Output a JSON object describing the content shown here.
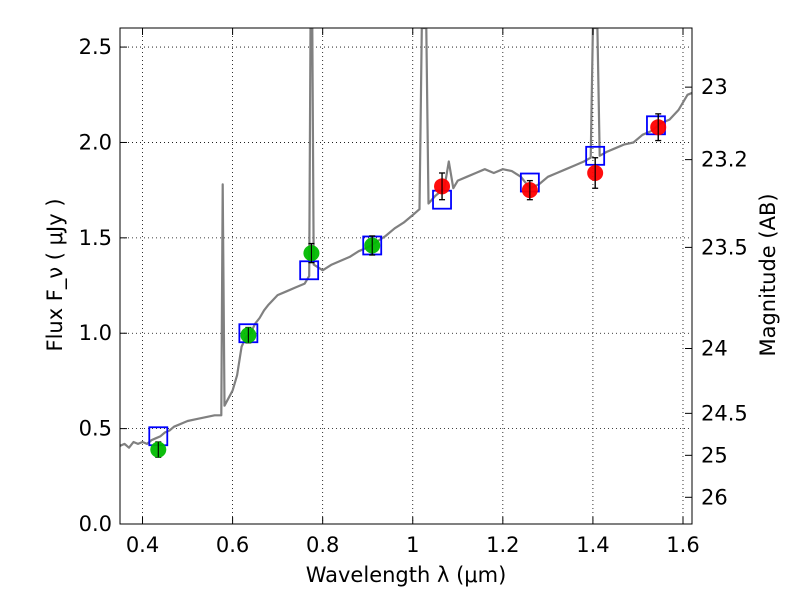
{
  "chart_data": {
    "type": "scatter",
    "title": "",
    "xlabel": "Wavelength λ (μm)",
    "ylabel": "Flux F_ν ( μJy )",
    "y2label": "Magnitude (AB)",
    "xlim": [
      0.35,
      1.62
    ],
    "ylim": [
      0.0,
      2.6
    ],
    "grid": true,
    "x_ticks": [
      "0.4",
      "0.6",
      "0.8",
      "1",
      "1.2",
      "1.4",
      "1.6"
    ],
    "y_ticks": [
      "0.0",
      "0.5",
      "1.0",
      "1.5",
      "2.0",
      "2.5"
    ],
    "y2_ticks": [
      {
        "label": "23",
        "flux": 2.29
      },
      {
        "label": "23.2",
        "flux": 1.91
      },
      {
        "label": "23.5",
        "flux": 1.45
      },
      {
        "label": "24",
        "flux": 0.92
      },
      {
        "label": "24.5",
        "flux": 0.58
      },
      {
        "label": "25",
        "flux": 0.36
      },
      {
        "label": "26",
        "flux": 0.14
      }
    ],
    "series": [
      {
        "kind": "spectrum",
        "color": "#808080",
        "points": [
          [
            0.35,
            0.41
          ],
          [
            0.36,
            0.42
          ],
          [
            0.37,
            0.4
          ],
          [
            0.38,
            0.43
          ],
          [
            0.39,
            0.42
          ],
          [
            0.4,
            0.43
          ],
          [
            0.41,
            0.42
          ],
          [
            0.42,
            0.44
          ],
          [
            0.43,
            0.45
          ],
          [
            0.44,
            0.46
          ],
          [
            0.45,
            0.48
          ],
          [
            0.46,
            0.49
          ],
          [
            0.47,
            0.51
          ],
          [
            0.48,
            0.52
          ],
          [
            0.49,
            0.53
          ],
          [
            0.5,
            0.54
          ],
          [
            0.52,
            0.55
          ],
          [
            0.54,
            0.56
          ],
          [
            0.56,
            0.57
          ],
          [
            0.575,
            0.57
          ],
          [
            0.578,
            1.78
          ],
          [
            0.582,
            0.62
          ],
          [
            0.6,
            0.7
          ],
          [
            0.61,
            0.78
          ],
          [
            0.62,
            0.93
          ],
          [
            0.63,
            0.98
          ],
          [
            0.64,
            1.0
          ],
          [
            0.65,
            1.05
          ],
          [
            0.66,
            1.08
          ],
          [
            0.67,
            1.12
          ],
          [
            0.68,
            1.15
          ],
          [
            0.7,
            1.2
          ],
          [
            0.72,
            1.22
          ],
          [
            0.74,
            1.24
          ],
          [
            0.76,
            1.26
          ],
          [
            0.77,
            1.3
          ],
          [
            0.773,
            2.6
          ],
          [
            0.777,
            2.6
          ],
          [
            0.78,
            1.36
          ],
          [
            0.8,
            1.33
          ],
          [
            0.82,
            1.36
          ],
          [
            0.84,
            1.38
          ],
          [
            0.86,
            1.4
          ],
          [
            0.88,
            1.43
          ],
          [
            0.9,
            1.45
          ],
          [
            0.92,
            1.48
          ],
          [
            0.94,
            1.51
          ],
          [
            0.96,
            1.55
          ],
          [
            0.98,
            1.58
          ],
          [
            1.0,
            1.62
          ],
          [
            1.015,
            1.65
          ],
          [
            1.02,
            2.6
          ],
          [
            1.03,
            2.6
          ],
          [
            1.035,
            1.68
          ],
          [
            1.05,
            1.72
          ],
          [
            1.06,
            1.74
          ],
          [
            1.07,
            1.76
          ],
          [
            1.08,
            1.9
          ],
          [
            1.09,
            1.76
          ],
          [
            1.1,
            1.8
          ],
          [
            1.12,
            1.82
          ],
          [
            1.14,
            1.84
          ],
          [
            1.16,
            1.86
          ],
          [
            1.18,
            1.84
          ],
          [
            1.2,
            1.86
          ],
          [
            1.22,
            1.85
          ],
          [
            1.24,
            1.82
          ],
          [
            1.26,
            1.76
          ],
          [
            1.28,
            1.78
          ],
          [
            1.3,
            1.82
          ],
          [
            1.32,
            1.84
          ],
          [
            1.34,
            1.86
          ],
          [
            1.36,
            1.88
          ],
          [
            1.38,
            1.9
          ],
          [
            1.395,
            1.92
          ],
          [
            1.4,
            2.6
          ],
          [
            1.41,
            2.6
          ],
          [
            1.415,
            1.93
          ],
          [
            1.43,
            1.95
          ],
          [
            1.45,
            1.97
          ],
          [
            1.47,
            1.99
          ],
          [
            1.49,
            2.0
          ],
          [
            1.51,
            2.04
          ],
          [
            1.53,
            2.06
          ],
          [
            1.55,
            2.1
          ],
          [
            1.57,
            2.12
          ],
          [
            1.59,
            2.17
          ],
          [
            1.61,
            2.25
          ],
          [
            1.62,
            2.26
          ]
        ]
      },
      {
        "kind": "model_boxes",
        "color": "#0000ff",
        "points": [
          [
            0.435,
            0.46
          ],
          [
            0.635,
            1.0
          ],
          [
            0.77,
            1.33
          ],
          [
            0.91,
            1.46
          ],
          [
            1.065,
            1.7
          ],
          [
            1.26,
            1.79
          ],
          [
            1.405,
            1.93
          ],
          [
            1.54,
            2.09
          ]
        ]
      },
      {
        "kind": "observed_points",
        "color": "#00bb00",
        "points": [
          {
            "x": 0.435,
            "y": 0.39,
            "err": 0.04
          },
          {
            "x": 0.635,
            "y": 0.99,
            "err": 0.04
          },
          {
            "x": 0.775,
            "y": 1.42,
            "err": 0.05
          },
          {
            "x": 0.91,
            "y": 1.46,
            "err": 0.05
          }
        ]
      },
      {
        "kind": "observed_points",
        "color": "#ff0000",
        "points": [
          {
            "x": 1.065,
            "y": 1.77,
            "err": 0.07
          },
          {
            "x": 1.26,
            "y": 1.75,
            "err": 0.05
          },
          {
            "x": 1.405,
            "y": 1.84,
            "err": 0.08
          },
          {
            "x": 1.545,
            "y": 2.08,
            "err": 0.07
          }
        ]
      }
    ]
  }
}
